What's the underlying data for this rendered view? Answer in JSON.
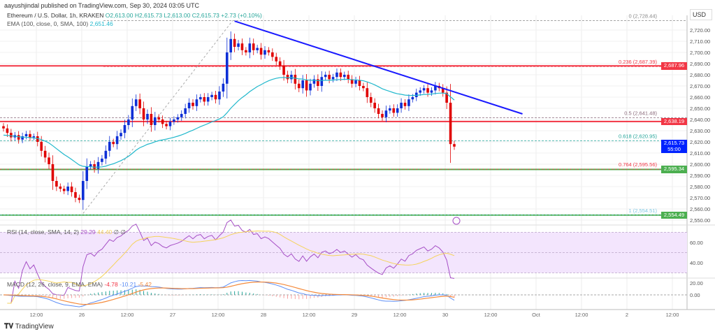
{
  "header": {
    "published": "aayushjindal published on TradingView.com, Sep 30, 2024 03:05 UTC"
  },
  "legend": {
    "symbol": "Ethereum / U.S. Dollar, 1h, KRAKEN",
    "open": "O2,613.00",
    "high": "H2,615.73",
    "low": "L2,613.00",
    "close": "C2,615.73",
    "change": "+2.73 (+0.10%)",
    "ema_label": "EMA (100, close, 0, SMA, 100)",
    "ema_value": "2,651.46"
  },
  "rsi_legend": {
    "label": "RSI (14, close, SMA, 14, 2)",
    "value": "29.29",
    "sma_value": "44.40",
    "extra": "∅ ∅"
  },
  "macd_legend": {
    "label": "MACD (12, 26, close, 9, EMA, EMA)",
    "hist": "-4.78",
    "macd": "-10.21",
    "signal": "-5.42"
  },
  "currency": "USD",
  "branding": "TradingView",
  "colors": {
    "up": "#0d2fd6",
    "down": "#e00000",
    "ema": "#21b8cc",
    "trend": "#1a1aff",
    "rsi": "#a64fc6",
    "rsi_sma": "#f5d35a",
    "macd": "#5d8ef5",
    "signal": "#f58b3c",
    "support": "#4caf50",
    "resistance": "#f23645"
  },
  "chart_data": {
    "type": "candlestick",
    "interval": "1h",
    "start_time": "2024-09-25 03:00",
    "closes": [
      2632,
      2628,
      2624,
      2626,
      2622,
      2625,
      2627,
      2624,
      2625,
      2620,
      2612,
      2606,
      2600,
      2585,
      2580,
      2578,
      2576,
      2580,
      2575,
      2570,
      2568,
      2585,
      2598,
      2600,
      2596,
      2602,
      2605,
      2612,
      2620,
      2618,
      2625,
      2628,
      2635,
      2640,
      2652,
      2658,
      2650,
      2640,
      2645,
      2635,
      2642,
      2640,
      2636,
      2634,
      2638,
      2640,
      2642,
      2645,
      2650,
      2655,
      2652,
      2658,
      2660,
      2656,
      2660,
      2662,
      2658,
      2665,
      2672,
      2700,
      2712,
      2705,
      2708,
      2702,
      2700,
      2708,
      2702,
      2704,
      2698,
      2702,
      2700,
      2696,
      2692,
      2688,
      2680,
      2676,
      2680,
      2672,
      2668,
      2675,
      2666,
      2672,
      2676,
      2670,
      2678,
      2680,
      2676,
      2678,
      2682,
      2678,
      2680,
      2676,
      2672,
      2675,
      2670,
      2668,
      2660,
      2655,
      2650,
      2645,
      2642,
      2648,
      2650,
      2646,
      2650,
      2655,
      2652,
      2658,
      2660,
      2664,
      2666,
      2668,
      2664,
      2666,
      2670,
      2668,
      2664,
      2655,
      2618,
      2615.73
    ],
    "ylim": [
      2546,
      2732
    ],
    "y_ticks": [
      "2,720.00",
      "2,710.00",
      "2,700.00",
      "2,690.00",
      "2,680.00",
      "2,670.00",
      "2,660.00",
      "2,650.00",
      "2,640.00",
      "2,630.00",
      "2,620.00",
      "2,610.00",
      "2,600.00",
      "2,590.00",
      "2,580.00",
      "2,570.00",
      "2,560.00",
      "2,550.00"
    ],
    "x_ticks": [
      "12:00",
      "26",
      "12:00",
      "27",
      "12:00",
      "28",
      "12:00",
      "29",
      "12:00",
      "30",
      "12:00",
      "Oct",
      "12:00",
      "2",
      "12:00"
    ],
    "fib_levels": [
      {
        "label": "0 (2,728.44)",
        "value": 2728.44,
        "color": "#888888"
      },
      {
        "label": "0.236 (2,687.39)",
        "value": 2687.39,
        "color": "#f23645"
      },
      {
        "label": "0.5 (2,641.48)",
        "value": 2641.48,
        "color": "#8a6a7a"
      },
      {
        "label": "0.618 (2,620.95)",
        "value": 2620.95,
        "color": "#26a69a"
      },
      {
        "label": "0.764 (2,595.56)",
        "value": 2595.56,
        "color": "#f23645"
      },
      {
        "label": "1 (2,554.51)",
        "value": 2554.51,
        "color": "#7ec8e3"
      }
    ],
    "price_labels": [
      {
        "text": "2,687.96",
        "value": 2687.96,
        "color": "#f23645"
      },
      {
        "text": "2,638.19",
        "value": 2638.19,
        "color": "#f23645"
      },
      {
        "text": "2,615.73",
        "value": 2615.73,
        "color": "#0022ff",
        "sub": "55:00"
      },
      {
        "text": "2,595.34",
        "value": 2595.34,
        "color": "#4caf50"
      },
      {
        "text": "2,554.49",
        "value": 2554.49,
        "color": "#4caf50"
      }
    ],
    "horizontal_lines": [
      {
        "value": 2687.96,
        "color": "#f23645"
      },
      {
        "value": 2638.19,
        "color": "#f23645"
      },
      {
        "value": 2595.34,
        "color": "#4caf50"
      },
      {
        "value": 2554.49,
        "color": "#4caf50"
      }
    ],
    "trendline": {
      "from": [
        "2024-09-27 16:00",
        2728
      ],
      "to": [
        "2024-09-30 20:00",
        2645
      ]
    },
    "rsi_ticks": [
      "60.00",
      "40.00",
      "20.00"
    ],
    "macd_ticks": [
      "0.00"
    ]
  }
}
